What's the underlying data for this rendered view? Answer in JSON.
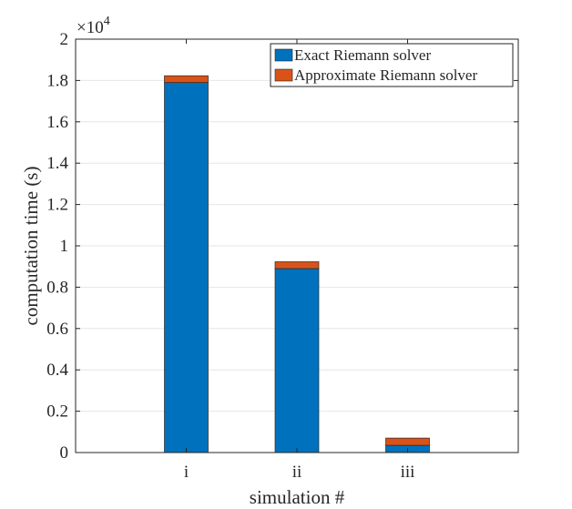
{
  "chart_data": {
    "type": "bar",
    "stacked": true,
    "categories": [
      "i",
      "ii",
      "iii"
    ],
    "series": [
      {
        "name": "Exact Riemann solver",
        "color": "#0072BD",
        "values": [
          17900,
          8900,
          350
        ]
      },
      {
        "name": "Approximate Riemann solver",
        "color": "#D95319",
        "values": [
          330,
          330,
          350
        ]
      }
    ],
    "xlabel": "simulation #",
    "ylabel": "computation time (s)",
    "ylim": [
      0,
      20000
    ],
    "y_exponent_label": "×10",
    "y_exponent_power": "4",
    "yticks": [
      0,
      2000,
      4000,
      6000,
      8000,
      10000,
      12000,
      14000,
      16000,
      18000,
      20000
    ],
    "ytick_labels": [
      "0",
      "0.2",
      "0.4",
      "0.6",
      "0.8",
      "1",
      "1.2",
      "1.4",
      "1.6",
      "1.8",
      "2"
    ],
    "grid": "horizontal",
    "legend_position": "top-right"
  }
}
